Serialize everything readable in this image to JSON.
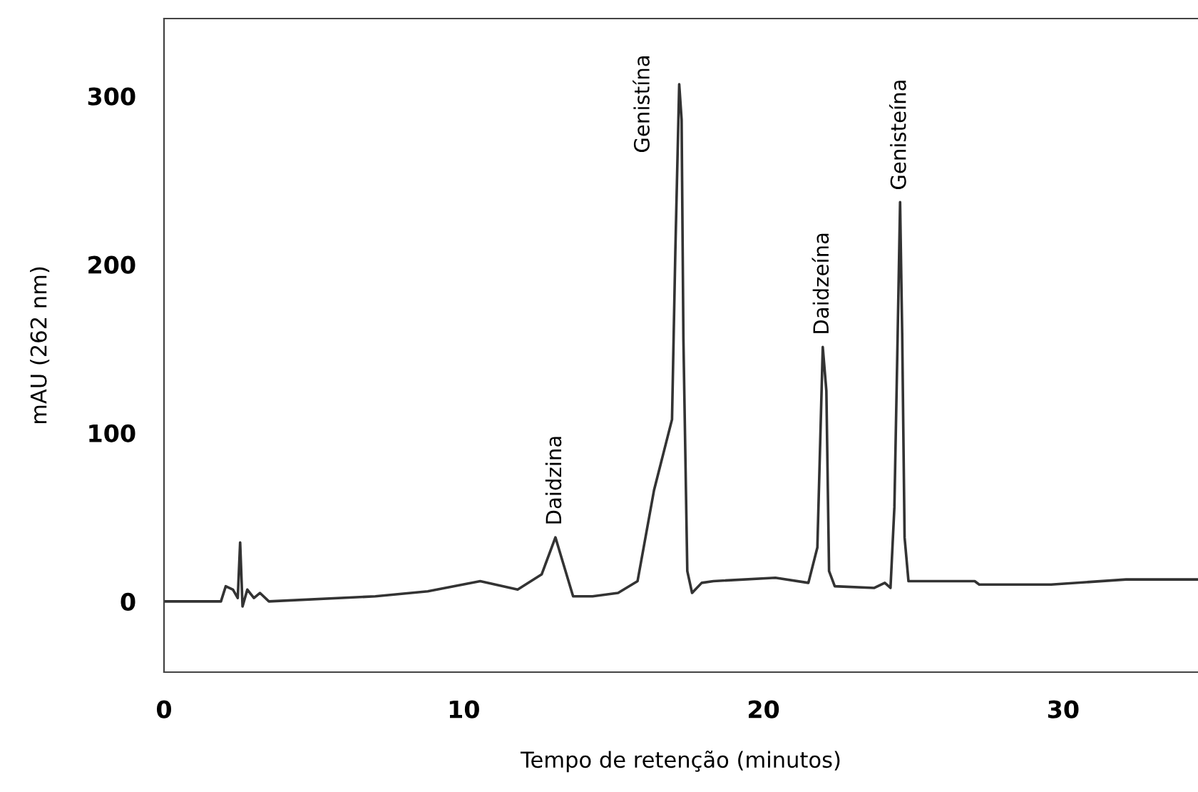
{
  "chart_data": {
    "type": "line",
    "xlabel": "Tempo de retenção (minutos)",
    "ylabel": "mAU (262 nm)",
    "xlim": [
      0,
      34.5
    ],
    "ylim": [
      -42,
      346
    ],
    "xticks": [
      0,
      10,
      20,
      30
    ],
    "yticks": [
      0,
      100,
      200,
      300
    ],
    "grid": false,
    "legend": false,
    "marker": "none",
    "line_style": "solid",
    "series": [
      {
        "color": "#333333",
        "x": [
          0,
          1.9,
          2.06,
          2.3,
          2.46,
          2.54,
          2.62,
          2.78,
          3.0,
          3.2,
          3.5,
          7.05,
          8.8,
          10.55,
          11.8,
          12.6,
          13.06,
          13.33,
          13.65,
          14.3,
          15.15,
          15.8,
          16.35,
          16.75,
          16.95,
          17.06,
          17.19,
          17.27,
          17.33,
          17.46,
          17.62,
          17.94,
          18.33,
          20.4,
          21.5,
          21.8,
          21.98,
          22.1,
          22.19,
          22.38,
          23.7,
          24.05,
          24.24,
          24.37,
          24.48,
          24.56,
          24.63,
          24.71,
          24.84,
          27.05,
          27.2,
          29.6,
          32.1,
          34.5
        ],
        "values": [
          0,
          0,
          9,
          7,
          2,
          35,
          -3,
          7,
          2,
          5,
          0,
          3,
          6,
          12,
          7,
          16,
          38,
          22,
          3,
          3,
          5,
          12,
          66,
          94,
          108,
          207,
          307,
          286,
          156,
          18,
          5,
          11,
          12,
          14,
          11,
          32,
          151,
          125,
          18,
          9,
          8,
          11,
          8,
          56,
          159,
          237,
          159,
          38,
          12,
          12,
          10,
          10,
          13,
          13
        ]
      }
    ],
    "annotations": [
      {
        "text": "Daidzina",
        "x": 13.06,
        "y": 38
      },
      {
        "text": "Genistína",
        "x": 17.19,
        "y": 307
      },
      {
        "text": "Daidzeína",
        "x": 21.98,
        "y": 151
      },
      {
        "text": "Genisteína",
        "x": 24.56,
        "y": 237
      }
    ]
  }
}
